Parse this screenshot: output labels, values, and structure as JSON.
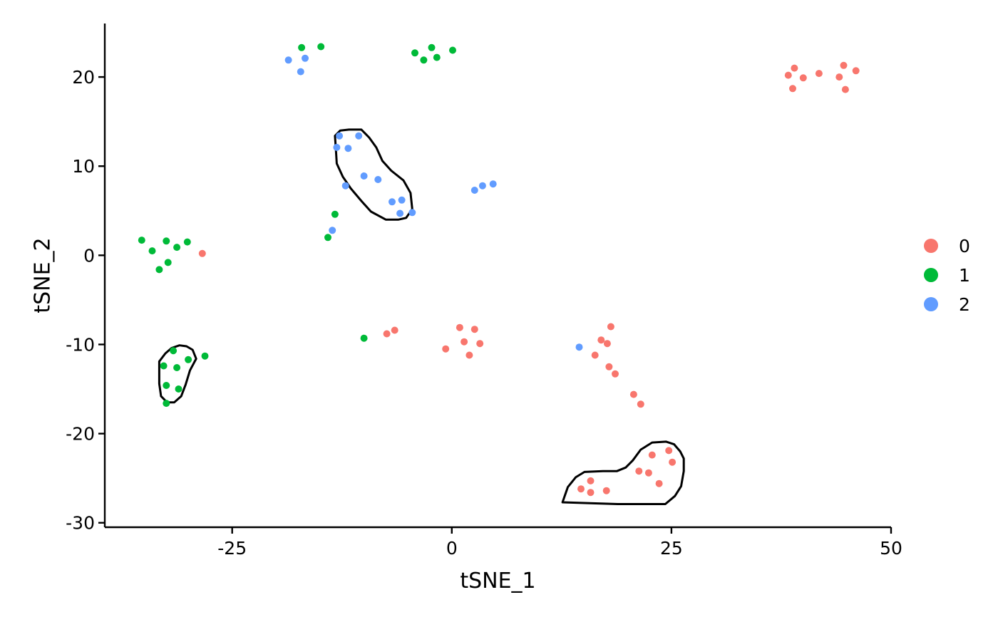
{
  "chart_data": {
    "type": "scatter",
    "xlabel": "tSNE_1",
    "ylabel": "tSNE_2",
    "xlim": [
      -39.5,
      50
    ],
    "ylim": [
      -30.5,
      26
    ],
    "x_ticks": [
      -25,
      0,
      25,
      50
    ],
    "x_tick_labels": [
      "-25",
      "0",
      "25",
      "50"
    ],
    "y_ticks": [
      -30,
      -20,
      -10,
      0,
      10,
      20
    ],
    "y_tick_labels": [
      "-30",
      "-20",
      "-10",
      "0",
      "10",
      "20"
    ],
    "grid": false,
    "legend_position": "right",
    "series": [
      {
        "name": "0",
        "color": "#F8766D",
        "points": [
          [
            38.3,
            20.2
          ],
          [
            39.0,
            21.0
          ],
          [
            38.8,
            18.7
          ],
          [
            40.0,
            19.9
          ],
          [
            41.8,
            20.4
          ],
          [
            44.1,
            20.0
          ],
          [
            44.6,
            21.3
          ],
          [
            44.8,
            18.6
          ],
          [
            46.0,
            20.7
          ],
          [
            -28.4,
            0.2
          ],
          [
            -7.4,
            -8.8
          ],
          [
            -6.5,
            -8.4
          ],
          [
            0.9,
            -8.1
          ],
          [
            1.4,
            -9.7
          ],
          [
            2.6,
            -8.3
          ],
          [
            -0.7,
            -10.5
          ],
          [
            2.0,
            -11.2
          ],
          [
            3.2,
            -9.9
          ],
          [
            18.1,
            -8.0
          ],
          [
            17.0,
            -9.5
          ],
          [
            17.7,
            -9.9
          ],
          [
            16.3,
            -11.2
          ],
          [
            17.9,
            -12.5
          ],
          [
            18.6,
            -13.3
          ],
          [
            20.7,
            -15.6
          ],
          [
            21.5,
            -16.7
          ],
          [
            22.8,
            -22.4
          ],
          [
            24.7,
            -21.9
          ],
          [
            25.1,
            -23.2
          ],
          [
            21.3,
            -24.2
          ],
          [
            22.4,
            -24.4
          ],
          [
            23.6,
            -25.6
          ],
          [
            14.7,
            -26.2
          ],
          [
            15.8,
            -25.3
          ],
          [
            15.8,
            -26.6
          ],
          [
            17.6,
            -26.4
          ]
        ]
      },
      {
        "name": "1",
        "color": "#00BA38",
        "points": [
          [
            -17.1,
            23.3
          ],
          [
            -14.9,
            23.4
          ],
          [
            -4.2,
            22.7
          ],
          [
            -3.2,
            21.9
          ],
          [
            -2.3,
            23.3
          ],
          [
            -1.7,
            22.2
          ],
          [
            0.1,
            23.0
          ],
          [
            -35.3,
            1.7
          ],
          [
            -34.1,
            0.5
          ],
          [
            -32.5,
            1.6
          ],
          [
            -31.3,
            0.9
          ],
          [
            -30.1,
            1.5
          ],
          [
            -32.3,
            -0.8
          ],
          [
            -33.3,
            -1.6
          ],
          [
            -13.3,
            4.6
          ],
          [
            -14.1,
            2.0
          ],
          [
            -10.0,
            -9.3
          ],
          [
            -31.7,
            -10.7
          ],
          [
            -32.8,
            -12.4
          ],
          [
            -31.3,
            -12.6
          ],
          [
            -30.0,
            -11.7
          ],
          [
            -28.1,
            -11.3
          ],
          [
            -32.5,
            -14.6
          ],
          [
            -31.1,
            -15.0
          ],
          [
            -32.5,
            -16.6
          ]
        ]
      },
      {
        "name": "2",
        "color": "#619CFF",
        "points": [
          [
            -18.6,
            21.9
          ],
          [
            -16.7,
            22.1
          ],
          [
            -17.2,
            20.6
          ],
          [
            -12.8,
            13.4
          ],
          [
            -10.6,
            13.4
          ],
          [
            -13.1,
            12.1
          ],
          [
            -11.8,
            12.0
          ],
          [
            -10.0,
            8.9
          ],
          [
            -8.4,
            8.5
          ],
          [
            -12.1,
            7.8
          ],
          [
            -6.8,
            6.0
          ],
          [
            -5.7,
            6.2
          ],
          [
            -5.9,
            4.7
          ],
          [
            -4.5,
            4.8
          ],
          [
            -13.6,
            2.8
          ],
          [
            2.6,
            7.3
          ],
          [
            3.5,
            7.8
          ],
          [
            4.7,
            8.0
          ],
          [
            14.5,
            -10.3
          ]
        ]
      }
    ],
    "outlines": [
      {
        "name": "outline-upper-left",
        "color": "#000000",
        "points": [
          [
            -13.2,
            12.0
          ],
          [
            -13.3,
            13.4
          ],
          [
            -12.7,
            14.0
          ],
          [
            -11.7,
            14.1
          ],
          [
            -10.3,
            14.1
          ],
          [
            -9.4,
            13.2
          ],
          [
            -8.6,
            12.1
          ],
          [
            -7.9,
            10.6
          ],
          [
            -6.9,
            9.5
          ],
          [
            -5.5,
            8.4
          ],
          [
            -4.7,
            7.0
          ],
          [
            -4.5,
            5.2
          ],
          [
            -5.2,
            4.2
          ],
          [
            -6.1,
            4.0
          ],
          [
            -7.5,
            4.0
          ],
          [
            -9.2,
            4.9
          ],
          [
            -10.3,
            6.1
          ],
          [
            -11.5,
            7.5
          ],
          [
            -12.4,
            8.8
          ],
          [
            -13.1,
            10.3
          ],
          [
            -13.2,
            12.0
          ]
        ]
      },
      {
        "name": "outline-left",
        "color": "#000000",
        "points": [
          [
            -32.6,
            -11.0
          ],
          [
            -31.9,
            -10.4
          ],
          [
            -31.0,
            -10.1
          ],
          [
            -30.2,
            -10.2
          ],
          [
            -29.5,
            -10.6
          ],
          [
            -29.1,
            -11.6
          ],
          [
            -29.8,
            -12.9
          ],
          [
            -30.3,
            -14.5
          ],
          [
            -30.8,
            -15.8
          ],
          [
            -31.6,
            -16.5
          ],
          [
            -32.4,
            -16.5
          ],
          [
            -33.1,
            -15.8
          ],
          [
            -33.3,
            -14.4
          ],
          [
            -33.3,
            -12.7
          ],
          [
            -33.3,
            -11.9
          ],
          [
            -32.6,
            -11.0
          ]
        ]
      },
      {
        "name": "outline-lower-right",
        "color": "#000000",
        "points": [
          [
            12.6,
            -27.7
          ],
          [
            13.2,
            -26.0
          ],
          [
            14.1,
            -24.9
          ],
          [
            15.1,
            -24.3
          ],
          [
            17.2,
            -24.2
          ],
          [
            18.8,
            -24.2
          ],
          [
            19.8,
            -23.8
          ],
          [
            20.6,
            -23.0
          ],
          [
            21.5,
            -21.8
          ],
          [
            22.8,
            -21.0
          ],
          [
            24.4,
            -20.9
          ],
          [
            25.3,
            -21.2
          ],
          [
            26.0,
            -22.0
          ],
          [
            26.4,
            -22.8
          ],
          [
            26.4,
            -24.2
          ],
          [
            26.1,
            -25.9
          ],
          [
            25.4,
            -27.0
          ],
          [
            24.3,
            -27.9
          ],
          [
            18.9,
            -27.9
          ],
          [
            15.7,
            -27.8
          ],
          [
            12.6,
            -27.7
          ]
        ]
      }
    ]
  }
}
